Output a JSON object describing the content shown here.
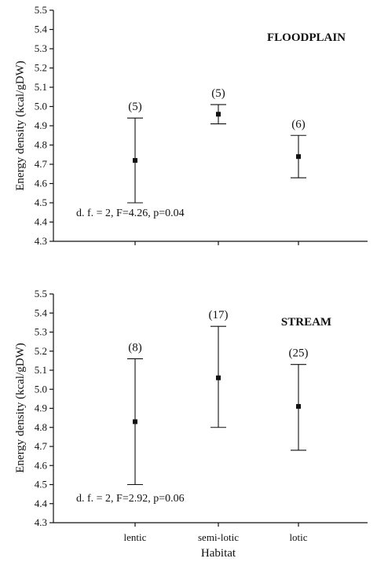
{
  "chart_data": [
    {
      "type": "errorbar",
      "panel_label": "FLOODPLAIN",
      "ylabel": "Energy density (kcal/gDW)",
      "xlabel": "",
      "ylim": [
        4.3,
        5.5
      ],
      "yticks": [
        "4.3",
        "4.4",
        "4.5",
        "4.6",
        "4.7",
        "4.8",
        "4.9",
        "5.0",
        "5.1",
        "5.2",
        "5.3",
        "5.4",
        "5.5"
      ],
      "categories": [
        "lentic",
        "semi-lotic",
        "lotic"
      ],
      "show_category_labels": false,
      "points": [
        {
          "category": "lentic",
          "mean": 4.72,
          "low": 4.5,
          "high": 4.94,
          "n_label": "(5)"
        },
        {
          "category": "semi-lotic",
          "mean": 4.96,
          "low": 4.91,
          "high": 5.01,
          "n_label": "(5)"
        },
        {
          "category": "lotic",
          "mean": 4.74,
          "low": 4.63,
          "high": 4.85,
          "n_label": "(6)"
        }
      ],
      "stat_text": "d. f.  = 2, F=4.26, p=0.04"
    },
    {
      "type": "errorbar",
      "panel_label": "STREAM",
      "ylabel": "Energy density (kcal/gDW)",
      "xlabel": "Habitat",
      "ylim": [
        4.3,
        5.5
      ],
      "yticks": [
        "4.3",
        "4.4",
        "4.5",
        "4.6",
        "4.7",
        "4.8",
        "4.9",
        "5.0",
        "5.1",
        "5.2",
        "5.3",
        "5.4",
        "5.5"
      ],
      "categories": [
        "lentic",
        "semi-lotic",
        "lotic"
      ],
      "show_category_labels": true,
      "points": [
        {
          "category": "lentic",
          "mean": 4.83,
          "low": 4.5,
          "high": 5.16,
          "n_label": "(8)"
        },
        {
          "category": "semi-lotic",
          "mean": 5.06,
          "low": 4.8,
          "high": 5.33,
          "n_label": "(17)"
        },
        {
          "category": "lotic",
          "mean": 4.91,
          "low": 4.68,
          "high": 5.13,
          "n_label": "(25)"
        }
      ],
      "stat_text": "d. f. = 2, F=2.92, p=0.06"
    }
  ]
}
